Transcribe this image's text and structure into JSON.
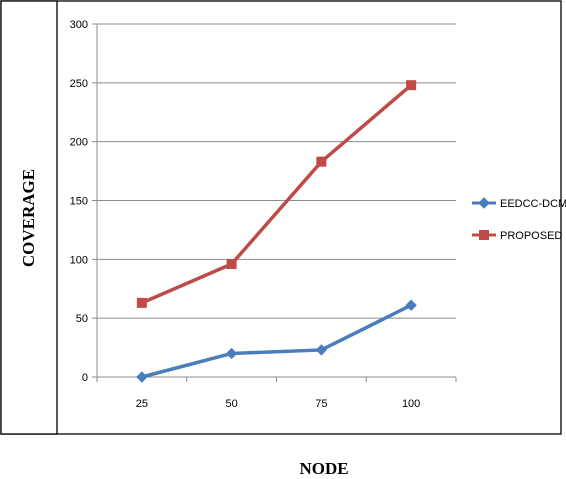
{
  "chart_data": {
    "type": "line",
    "title": "",
    "xlabel": "NODE",
    "ylabel": "COVERAGE",
    "categories": [
      "25",
      "50",
      "75",
      "100"
    ],
    "ylim": [
      0,
      300
    ],
    "yticks": [
      0,
      50,
      100,
      150,
      200,
      250,
      300
    ],
    "grid": true,
    "legend_position": "right",
    "series": [
      {
        "name": "EEDCC-DCM",
        "values": [
          0,
          20,
          23,
          61
        ],
        "color": "#4a7ebb",
        "marker": "diamond"
      },
      {
        "name": "PROPOSED",
        "values": [
          63,
          96,
          183,
          248
        ],
        "color": "#be4b48",
        "marker": "square"
      }
    ]
  }
}
